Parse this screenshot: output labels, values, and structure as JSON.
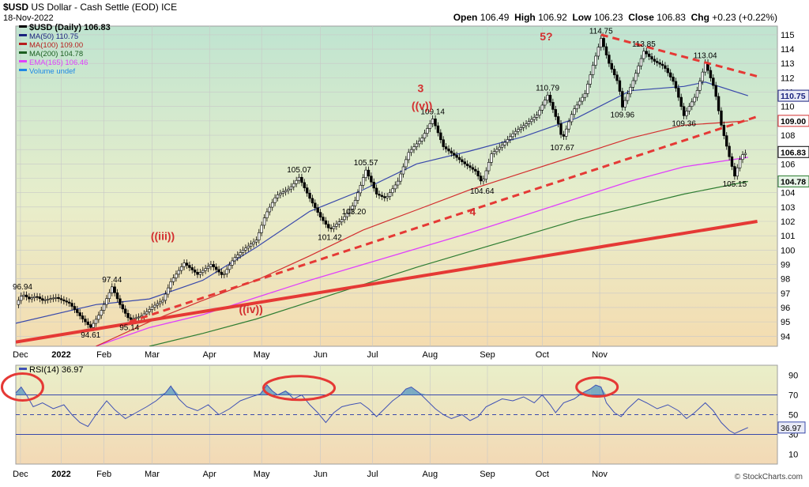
{
  "header": {
    "symbol": "$USD",
    "name": "US Dollar - Cash Settle (EOD)",
    "exchange": "ICE",
    "date": "18-Nov-2022",
    "open_label": "Open",
    "open": "106.49",
    "high_label": "High",
    "high": "106.92",
    "low_label": "Low",
    "low": "106.23",
    "close_label": "Close",
    "close": "106.83",
    "chg_label": "Chg",
    "chg": "+0.23 (+0.22%)",
    "brand": "© StockCharts.com"
  },
  "legend": [
    {
      "text": "$USD (Daily) 106.83",
      "color": "#000000"
    },
    {
      "text": "MA(50) 110.75",
      "color": "#1a237e"
    },
    {
      "text": "MA(100) 109.00",
      "color": "#b71c1c"
    },
    {
      "text": "MA(200) 104.78",
      "color": "#1b5e20"
    },
    {
      "text": "EMA(165) 106.46",
      "color": "#e040fb"
    },
    {
      "text": "Volume undef",
      "color": "#1e88e5"
    }
  ],
  "rsi_legend": "RSI(14) 36.97",
  "colors": {
    "price": "#000000",
    "ma50": "#3949ab",
    "ma100": "#d32f2f",
    "ma200": "#2e7d32",
    "ema165": "#e040fb",
    "trend": "#e53935",
    "rsi": "#3f51b5"
  },
  "chart_data": {
    "type": "line",
    "x_labels": [
      "Dec",
      "2022",
      "Feb",
      "Mar",
      "Apr",
      "May",
      "Jun",
      "Jul",
      "Aug",
      "Sep",
      "Oct",
      "Nov"
    ],
    "x_label_pos": [
      0.35,
      3.4,
      6.6,
      10.2,
      14.5,
      18.4,
      22.8,
      26.7,
      31.0,
      35.3,
      39.4,
      43.7
    ],
    "ylim": [
      93.3,
      115.6
    ],
    "yticks": [
      94,
      95,
      96,
      97,
      98,
      99,
      100,
      101,
      102,
      103,
      104,
      105,
      106,
      107,
      108,
      109,
      110,
      111,
      112,
      113,
      114,
      115
    ],
    "price": [
      [
        0,
        96.2
      ],
      [
        0.5,
        96.94
      ],
      [
        1,
        96.6
      ],
      [
        1.5,
        96.8
      ],
      [
        2,
        96.5
      ],
      [
        3,
        96.7
      ],
      [
        4,
        96.3
      ],
      [
        5,
        95.2
      ],
      [
        5.6,
        94.61
      ],
      [
        6.3,
        95.6
      ],
      [
        7.2,
        97.44
      ],
      [
        7.8,
        96.2
      ],
      [
        8.5,
        95.14
      ],
      [
        9.4,
        95.4
      ],
      [
        10.3,
        96.1
      ],
      [
        11,
        96.5
      ],
      [
        11.6,
        97.8
      ],
      [
        12.6,
        99.1
      ],
      [
        13.6,
        98.3
      ],
      [
        14.6,
        99.0
      ],
      [
        15.5,
        98.2
      ],
      [
        16.3,
        99.4
      ],
      [
        17,
        100.0
      ],
      [
        18,
        100.7
      ],
      [
        18.7,
        102.5
      ],
      [
        19.5,
        103.8
      ],
      [
        20.5,
        104.3
      ],
      [
        21.2,
        105.07
      ],
      [
        22,
        103.6
      ],
      [
        22.8,
        102.3
      ],
      [
        23.5,
        101.42
      ],
      [
        24.5,
        102.2
      ],
      [
        25.3,
        103.2
      ],
      [
        26.2,
        105.57
      ],
      [
        27,
        103.9
      ],
      [
        27.7,
        103.6
      ],
      [
        28.6,
        104.8
      ],
      [
        29.4,
        106.8
      ],
      [
        30.4,
        107.8
      ],
      [
        31.2,
        109.14
      ],
      [
        32,
        107.2
      ],
      [
        32.8,
        106.6
      ],
      [
        33.6,
        106.0
      ],
      [
        34.4,
        105.5
      ],
      [
        34.9,
        104.64
      ],
      [
        35.6,
        106.7
      ],
      [
        36.5,
        107.4
      ],
      [
        37.3,
        108.2
      ],
      [
        38.2,
        108.8
      ],
      [
        39,
        109.4
      ],
      [
        39.8,
        110.79
      ],
      [
        40.6,
        108.8
      ],
      [
        40.9,
        107.67
      ],
      [
        41.7,
        109.7
      ],
      [
        42.6,
        110.9
      ],
      [
        43.3,
        113.2
      ],
      [
        43.8,
        114.75
      ],
      [
        44.4,
        113.0
      ],
      [
        45.1,
        111.6
      ],
      [
        45.4,
        109.96
      ],
      [
        46.2,
        111.8
      ],
      [
        47,
        113.85
      ],
      [
        47.7,
        113.2
      ],
      [
        48.5,
        112.8
      ],
      [
        49.3,
        111.6
      ],
      [
        50,
        109.36
      ],
      [
        50.9,
        110.8
      ],
      [
        51.6,
        113.04
      ],
      [
        52.3,
        111.2
      ],
      [
        52.8,
        108.7
      ],
      [
        53.4,
        106.5
      ],
      [
        53.8,
        105.15
      ],
      [
        54.3,
        106.6
      ],
      [
        54.8,
        106.83
      ]
    ],
    "ma50": [
      [
        0,
        94.9
      ],
      [
        6,
        96.2
      ],
      [
        10,
        96.6
      ],
      [
        14,
        97.9
      ],
      [
        18,
        100.2
      ],
      [
        22,
        102.7
      ],
      [
        26,
        104.2
      ],
      [
        30,
        106.0
      ],
      [
        34,
        106.9
      ],
      [
        38,
        107.9
      ],
      [
        42,
        109.2
      ],
      [
        46,
        111.1
      ],
      [
        50,
        111.4
      ],
      [
        51.6,
        111.7
      ],
      [
        54.8,
        110.75
      ]
    ],
    "ma100": [
      [
        6,
        93.3
      ],
      [
        10,
        95.0
      ],
      [
        14,
        96.5
      ],
      [
        18,
        97.9
      ],
      [
        22,
        99.6
      ],
      [
        26,
        101.4
      ],
      [
        30,
        102.8
      ],
      [
        34,
        104.2
      ],
      [
        38,
        105.4
      ],
      [
        42,
        106.6
      ],
      [
        46,
        107.8
      ],
      [
        50,
        108.7
      ],
      [
        54.8,
        109.0
      ]
    ],
    "ma200": [
      [
        10,
        93.3
      ],
      [
        14,
        94.2
      ],
      [
        18,
        95.2
      ],
      [
        22,
        96.4
      ],
      [
        26,
        97.6
      ],
      [
        30,
        98.8
      ],
      [
        34,
        99.9
      ],
      [
        38,
        101.0
      ],
      [
        42,
        102.1
      ],
      [
        46,
        103.0
      ],
      [
        50,
        103.9
      ],
      [
        54.8,
        104.78
      ]
    ],
    "ema165": [
      [
        6,
        93.3
      ],
      [
        10,
        94.6
      ],
      [
        14,
        95.5
      ],
      [
        18,
        96.7
      ],
      [
        22,
        97.9
      ],
      [
        26,
        99.0
      ],
      [
        30,
        100.1
      ],
      [
        34,
        101.2
      ],
      [
        38,
        102.4
      ],
      [
        42,
        103.6
      ],
      [
        46,
        104.8
      ],
      [
        50,
        105.8
      ],
      [
        54.8,
        106.46
      ]
    ],
    "annotations": [
      {
        "text": "96.94",
        "x": 0.5,
        "y": 96.94
      },
      {
        "text": "94.61",
        "x": 5.6,
        "y": 94.61
      },
      {
        "text": "97.44",
        "x": 7.2,
        "y": 97.44
      },
      {
        "text": "95.14",
        "x": 8.5,
        "y": 95.14
      },
      {
        "text": "105.07",
        "x": 21.2,
        "y": 105.07
      },
      {
        "text": "101.42",
        "x": 23.5,
        "y": 101.42
      },
      {
        "text": "103.20",
        "x": 25.3,
        "y": 103.2
      },
      {
        "text": "105.57",
        "x": 26.2,
        "y": 105.57
      },
      {
        "text": "109.14",
        "x": 31.2,
        "y": 109.14
      },
      {
        "text": "104.64",
        "x": 34.9,
        "y": 104.64
      },
      {
        "text": "110.79",
        "x": 39.8,
        "y": 110.79
      },
      {
        "text": "107.67",
        "x": 40.9,
        "y": 107.67
      },
      {
        "text": "114.75",
        "x": 43.8,
        "y": 114.75
      },
      {
        "text": "109.96",
        "x": 45.4,
        "y": 109.96
      },
      {
        "text": "113.85",
        "x": 47,
        "y": 113.85
      },
      {
        "text": "109.36",
        "x": 50,
        "y": 109.36
      },
      {
        "text": "113.04",
        "x": 51.6,
        "y": 113.04
      },
      {
        "text": "105.15",
        "x": 53.8,
        "y": 105.15
      }
    ],
    "wave_labels": [
      {
        "text": "((iii))",
        "x": 11.0,
        "y": 100.7
      },
      {
        "text": "((iv))",
        "x": 17.6,
        "y": 95.6
      },
      {
        "text": "3",
        "x": 30.3,
        "y": 111.0
      },
      {
        "text": "((v))",
        "x": 30.4,
        "y": 109.8
      },
      {
        "text": "4",
        "x": 34.2,
        "y": 102.4
      },
      {
        "text": "5?",
        "x": 39.7,
        "y": 114.6
      }
    ],
    "trendlines": [
      {
        "name": "solid",
        "style": "solid",
        "points": [
          [
            0,
            93.6
          ],
          [
            55.5,
            102.0
          ]
        ]
      },
      {
        "name": "dashed-support",
        "style": "dashed",
        "points": [
          [
            8.5,
            95.0
          ],
          [
            55.5,
            109.3
          ]
        ]
      },
      {
        "name": "dashed-resistance",
        "style": "dashed",
        "points": [
          [
            43.8,
            115.0
          ],
          [
            55.5,
            112.1
          ]
        ]
      }
    ],
    "axis_tags": [
      {
        "text": "110.75",
        "y": 110.75,
        "bg": "#e8eaf6",
        "fg": "#1a237e",
        "border": "#1a237e"
      },
      {
        "text": "109.00",
        "y": 109.0,
        "bg": "#ffffff",
        "fg": "#000000",
        "border": "#d32f2f"
      },
      {
        "text": "106.83",
        "y": 106.83,
        "bg": "#ffffff",
        "fg": "#000000",
        "border": "#000000"
      },
      {
        "text": "104.78",
        "y": 104.78,
        "bg": "#e8f5e9",
        "fg": "#000000",
        "border": "#2e7d32"
      }
    ],
    "rsi": {
      "ylim": [
        0,
        100
      ],
      "yticks": [
        10,
        30,
        50,
        70,
        90
      ],
      "levels": [
        30,
        50,
        70
      ],
      "last": "36.97",
      "values": [
        [
          0,
          72
        ],
        [
          0.4,
          78
        ],
        [
          0.8,
          70
        ],
        [
          1.3,
          58
        ],
        [
          2,
          62
        ],
        [
          2.8,
          56
        ],
        [
          3.6,
          60
        ],
        [
          4.2,
          50
        ],
        [
          4.8,
          42
        ],
        [
          5.4,
          38
        ],
        [
          6,
          50
        ],
        [
          6.8,
          64
        ],
        [
          7.4,
          55
        ],
        [
          8.2,
          46
        ],
        [
          9,
          52
        ],
        [
          9.8,
          58
        ],
        [
          10.5,
          64
        ],
        [
          11.2,
          72
        ],
        [
          11.6,
          79
        ],
        [
          12.2,
          66
        ],
        [
          12.8,
          58
        ],
        [
          13.6,
          54
        ],
        [
          14.4,
          60
        ],
        [
          15.2,
          50
        ],
        [
          16,
          56
        ],
        [
          16.8,
          64
        ],
        [
          17.6,
          68
        ],
        [
          18.3,
          71
        ],
        [
          18.8,
          80
        ],
        [
          19.2,
          74
        ],
        [
          19.6,
          70
        ],
        [
          20.2,
          74
        ],
        [
          20.8,
          66
        ],
        [
          21.4,
          70
        ],
        [
          22,
          60
        ],
        [
          22.6,
          52
        ],
        [
          23.2,
          42
        ],
        [
          23.8,
          52
        ],
        [
          24.4,
          58
        ],
        [
          25,
          60
        ],
        [
          25.8,
          62
        ],
        [
          26.4,
          56
        ],
        [
          27,
          48
        ],
        [
          27.6,
          56
        ],
        [
          28.2,
          64
        ],
        [
          28.8,
          70
        ],
        [
          29.2,
          76
        ],
        [
          29.6,
          78
        ],
        [
          30.2,
          72
        ],
        [
          30.8,
          64
        ],
        [
          31.4,
          56
        ],
        [
          32,
          50
        ],
        [
          32.6,
          46
        ],
        [
          33.4,
          50
        ],
        [
          34,
          44
        ],
        [
          34.6,
          48
        ],
        [
          35.2,
          58
        ],
        [
          35.8,
          62
        ],
        [
          36.4,
          66
        ],
        [
          37.2,
          64
        ],
        [
          38,
          68
        ],
        [
          38.8,
          62
        ],
        [
          39.4,
          70
        ],
        [
          40,
          60
        ],
        [
          40.4,
          52
        ],
        [
          41,
          62
        ],
        [
          41.8,
          66
        ],
        [
          42.4,
          72
        ],
        [
          43,
          76
        ],
        [
          43.4,
          80
        ],
        [
          43.8,
          78
        ],
        [
          44.2,
          62
        ],
        [
          44.8,
          52
        ],
        [
          45.3,
          48
        ],
        [
          45.8,
          56
        ],
        [
          46.6,
          66
        ],
        [
          47.2,
          62
        ],
        [
          48,
          56
        ],
        [
          48.8,
          60
        ],
        [
          49.6,
          54
        ],
        [
          50.2,
          46
        ],
        [
          50.8,
          52
        ],
        [
          51.6,
          62
        ],
        [
          52.2,
          54
        ],
        [
          52.8,
          42
        ],
        [
          53.4,
          34
        ],
        [
          53.8,
          31
        ],
        [
          54.3,
          34
        ],
        [
          54.8,
          36.97
        ]
      ]
    }
  }
}
